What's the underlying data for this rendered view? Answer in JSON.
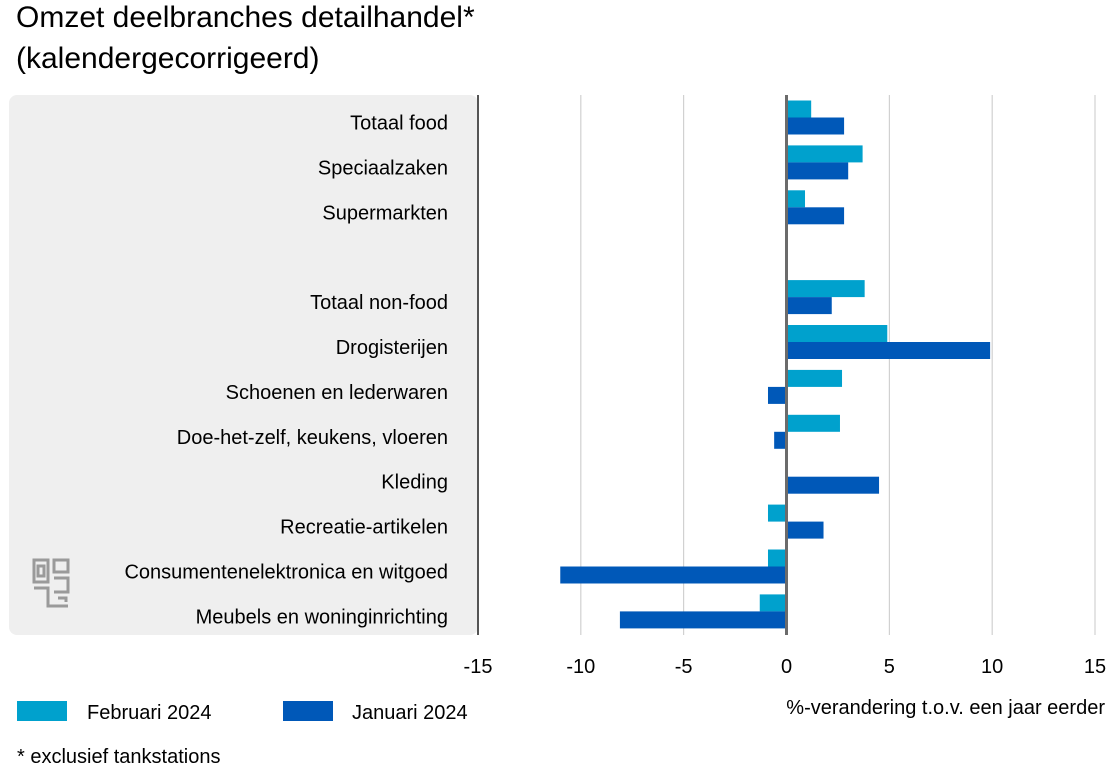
{
  "title_line1": "Omzet deelbranches detailhandel*",
  "title_line2": "(kalendergecorrigeerd)",
  "footnote": "* exclusief tankstations",
  "colors": {
    "februari": "#00a1cd",
    "januari": "#0058b8",
    "panel": "#efefef",
    "grid": "#c8c8c8",
    "zero": "#6b6b6b"
  },
  "chart_data": {
    "type": "bar",
    "orientation": "horizontal",
    "xlabel": "%-verandering t.o.v. een jaar eerder",
    "xlim": [
      -15,
      15
    ],
    "xticks": [
      "-15",
      "-10",
      "-5",
      "0",
      "5",
      "10",
      "15"
    ],
    "legend_position": "bottom-left",
    "grid": true,
    "categories": [
      "Totaal food",
      "Speciaalzaken",
      "Supermarkten",
      "",
      "Totaal non-food",
      "Drogisterijen",
      "Schoenen en lederwaren",
      "Doe-het-zelf, keukens, vloeren",
      "Kleding",
      "Recreatie-artikelen",
      "Consumentenelektronica en witgoed",
      "Meubels en woninginrichting"
    ],
    "series": [
      {
        "name": "Februari 2024",
        "values": [
          1.2,
          3.7,
          0.9,
          null,
          3.8,
          4.9,
          2.7,
          2.6,
          0.0,
          -0.9,
          -0.9,
          -1.3
        ]
      },
      {
        "name": "Januari 2024",
        "values": [
          2.8,
          3.0,
          2.8,
          null,
          2.2,
          9.9,
          -0.9,
          -0.6,
          4.5,
          1.8,
          -11.0,
          -8.1
        ]
      }
    ]
  }
}
